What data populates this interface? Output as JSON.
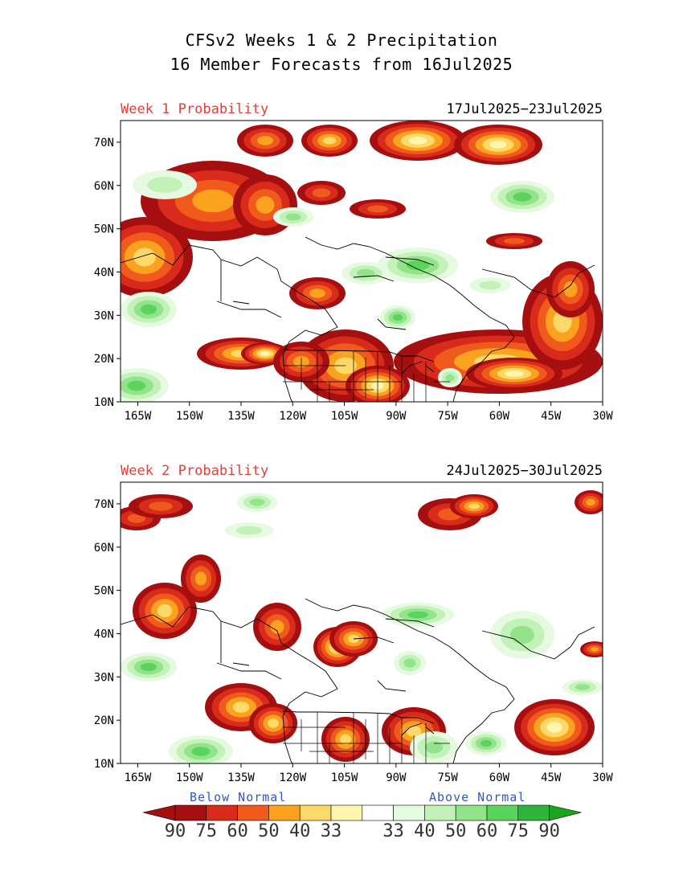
{
  "header": {
    "title_line1": "CFSv2 Weeks 1 & 2 Precipitation",
    "title_line2": "16 Member Forecasts from 16Jul2025"
  },
  "panels": [
    {
      "label": "Week 1 Probability",
      "dates": "17Jul2025−23Jul2025"
    },
    {
      "label": "Week 2 Probability",
      "dates": "24Jul2025−30Jul2025"
    }
  ],
  "axes": {
    "lat_labels": [
      "70N",
      "60N",
      "50N",
      "40N",
      "30N",
      "20N",
      "10N"
    ],
    "lat_values": [
      70,
      60,
      50,
      40,
      30,
      20,
      10
    ],
    "lon_labels": [
      "165W",
      "150W",
      "135W",
      "120W",
      "105W",
      "90W",
      "75W",
      "60W",
      "45W",
      "30W"
    ],
    "lon_values": [
      -165,
      -150,
      -135,
      -120,
      -105,
      -90,
      -75,
      -60,
      -45,
      -30
    ],
    "lon_range": [
      -170,
      -30
    ],
    "lat_range": [
      10,
      75
    ]
  },
  "legend": {
    "below_label": "Below Normal",
    "above_label": "Above Normal",
    "colors": {
      "below": [
        "#a50f0f",
        "#d92b1c",
        "#f05a1c",
        "#fba21e",
        "#fdd96a",
        "#fff5ad"
      ],
      "neutral": "#ffffff",
      "above": [
        "#e5fae0",
        "#c2f2b8",
        "#92e38a",
        "#5bd45d",
        "#2fb53c"
      ],
      "below_end": "#a50f0f",
      "above_end": "#19a51d"
    },
    "numbers": [
      "90",
      "75",
      "60",
      "50",
      "40",
      "33",
      "33",
      "40",
      "50",
      "60",
      "75",
      "90"
    ]
  }
}
